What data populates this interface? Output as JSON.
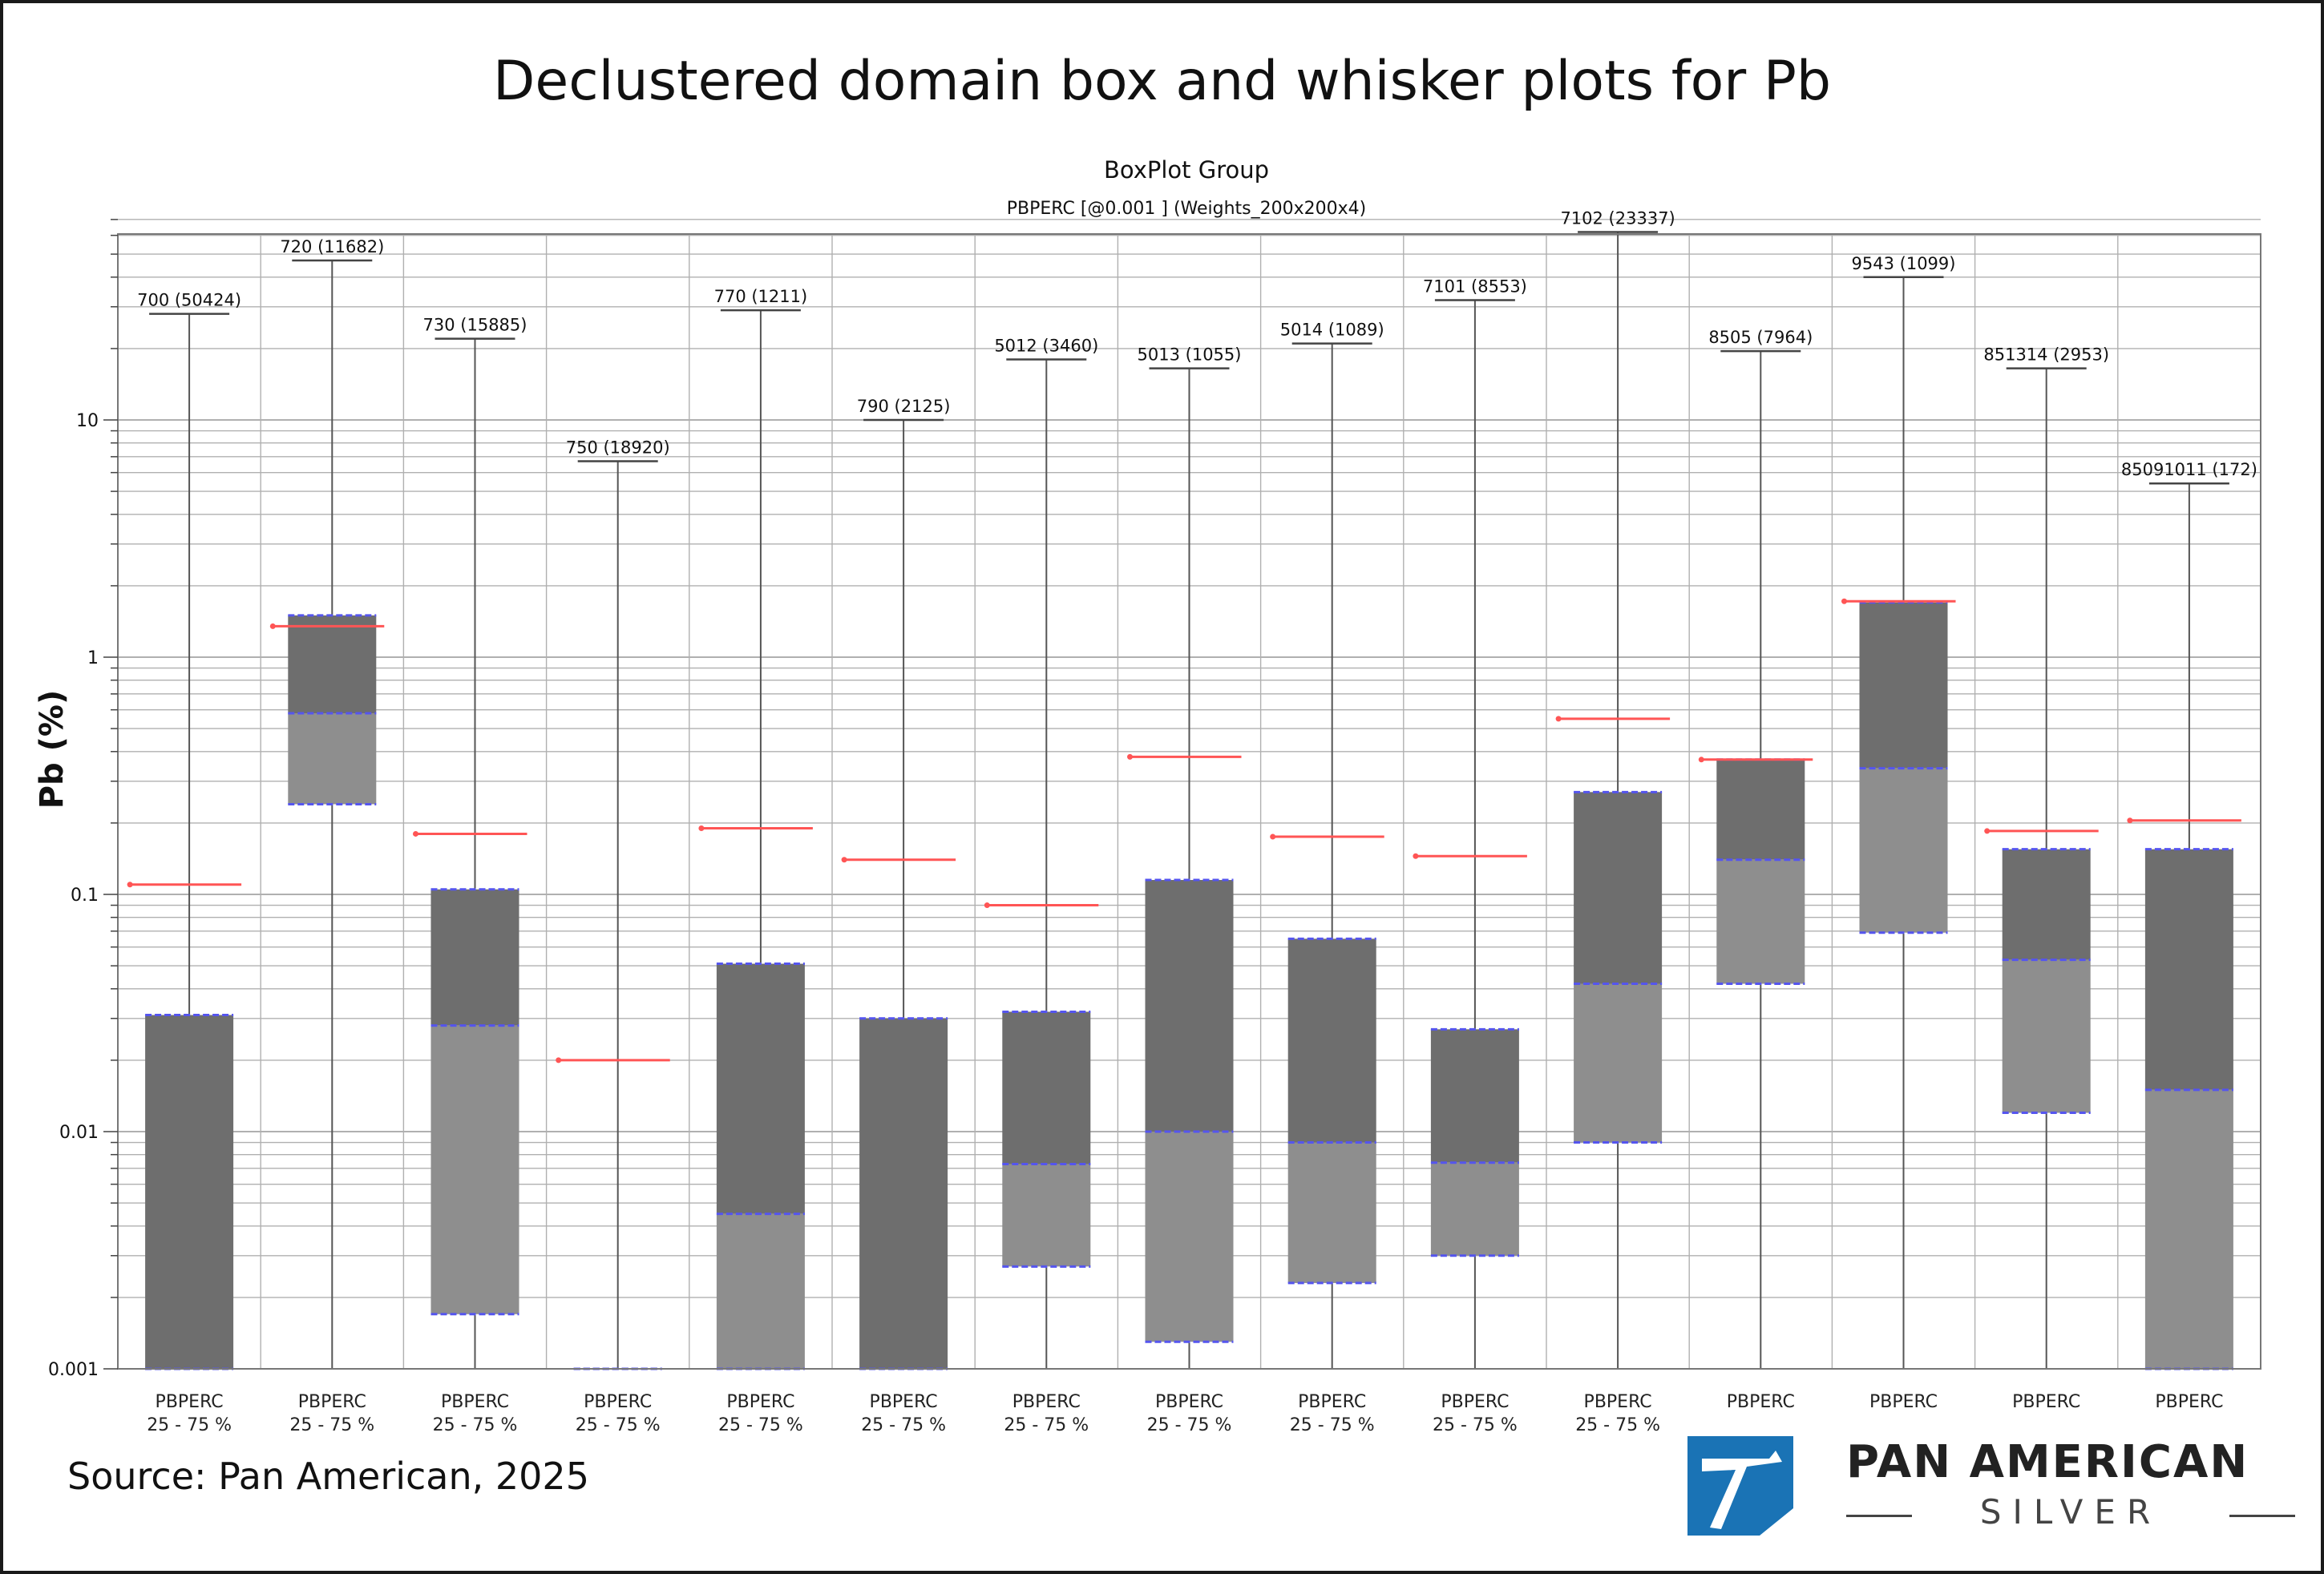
{
  "title": "Declustered domain box and whisker plots for Pb",
  "source": "Source: Pan American, 2025",
  "logo": {
    "name": "PAN AMERICAN",
    "subtitle": "SILVER",
    "icon": "pan-american-pickaxe-icon",
    "color": "#1a73b5"
  },
  "colors": {
    "box_upper": "#6e6e6e",
    "box_lower": "#8e8e8e",
    "mean_line": "#ff5555",
    "quartile_line": "#5555ee",
    "grid": "#b0b0b0"
  },
  "chart_data": {
    "type": "boxplot",
    "title": "BoxPlot Group",
    "subtitle": "PBPERC [@0.001 ] (Weights_200x200x4)",
    "ylabel": "Pb (%)",
    "yscale": "log",
    "ylim": [
      0.001,
      70
    ],
    "ytick_labels": [
      "0.001",
      "0.01",
      "0.1",
      "1",
      "10"
    ],
    "grid": true,
    "boxes": [
      {
        "label": "700 (50424)",
        "xlabel": "PBPERC",
        "xsub": "25 - 75 %",
        "min": 0.001,
        "q1": 0.001,
        "median": 0.001,
        "q3": 0.031,
        "max": 28,
        "mean": 0.11
      },
      {
        "label": "720 (11682)",
        "xlabel": "PBPERC",
        "xsub": "25 - 75 %",
        "min": 0.001,
        "q1": 0.24,
        "median": 0.58,
        "q3": 1.5,
        "max": 47,
        "mean": 1.35
      },
      {
        "label": "730 (15885)",
        "xlabel": "PBPERC",
        "xsub": "25 - 75 %",
        "min": 0.001,
        "q1": 0.0017,
        "median": 0.028,
        "q3": 0.105,
        "max": 22,
        "mean": 0.18
      },
      {
        "label": "750 (18920)",
        "xlabel": "PBPERC",
        "xsub": "25 - 75 %",
        "min": 0.001,
        "q1": 0.001,
        "median": 0.001,
        "q3": 0.001,
        "max": 6.7,
        "mean": 0.02
      },
      {
        "label": "770 (1211)",
        "xlabel": "PBPERC",
        "xsub": "25 - 75 %",
        "min": 0.001,
        "q1": 0.001,
        "median": 0.0045,
        "q3": 0.051,
        "max": 29,
        "mean": 0.19
      },
      {
        "label": "790 (2125)",
        "xlabel": "PBPERC",
        "xsub": "25 - 75 %",
        "min": 0.001,
        "q1": 0.001,
        "median": 0.001,
        "q3": 0.03,
        "max": 10,
        "mean": 0.14
      },
      {
        "label": "5012 (3460)",
        "xlabel": "PBPERC",
        "xsub": "25 - 75 %",
        "min": 0.001,
        "q1": 0.0027,
        "median": 0.0073,
        "q3": 0.032,
        "max": 18,
        "mean": 0.09
      },
      {
        "label": "5013 (1055)",
        "xlabel": "PBPERC",
        "xsub": "25 - 75 %",
        "min": 0.001,
        "q1": 0.0013,
        "median": 0.01,
        "q3": 0.115,
        "max": 16.5,
        "mean": 0.38
      },
      {
        "label": "5014 (1089)",
        "xlabel": "PBPERC",
        "xsub": "25 - 75 %",
        "min": 0.001,
        "q1": 0.0023,
        "median": 0.009,
        "q3": 0.065,
        "max": 21,
        "mean": 0.175
      },
      {
        "label": "7101 (8553)",
        "xlabel": "PBPERC",
        "xsub": "25 - 75 %",
        "min": 0.001,
        "q1": 0.003,
        "median": 0.0074,
        "q3": 0.027,
        "max": 32,
        "mean": 0.145
      },
      {
        "label": "7102 (23337)",
        "xlabel": "PBPERC",
        "xsub": "25 - 75 %",
        "min": 0.001,
        "q1": 0.009,
        "median": 0.042,
        "q3": 0.27,
        "max": 62,
        "mean": 0.55
      },
      {
        "label": "8505 (7964)",
        "xlabel": "PBPERC",
        "xsub": "",
        "min": 0.001,
        "q1": 0.042,
        "median": 0.14,
        "q3": 0.37,
        "max": 19.5,
        "mean": 0.37
      },
      {
        "label": "9543 (1099)",
        "xlabel": "PBPERC",
        "xsub": "",
        "min": 0.001,
        "q1": 0.069,
        "median": 0.34,
        "q3": 1.7,
        "max": 40,
        "mean": 1.72
      },
      {
        "label": "851314 (2953)",
        "xlabel": "PBPERC",
        "xsub": "",
        "min": 0.001,
        "q1": 0.012,
        "median": 0.053,
        "q3": 0.155,
        "max": 16.5,
        "mean": 0.185
      },
      {
        "label": "85091011 (172)",
        "xlabel": "PBPERC",
        "xsub": "",
        "min": 0.001,
        "q1": 0.001,
        "median": 0.015,
        "q3": 0.155,
        "max": 5.4,
        "mean": 0.205
      }
    ]
  }
}
